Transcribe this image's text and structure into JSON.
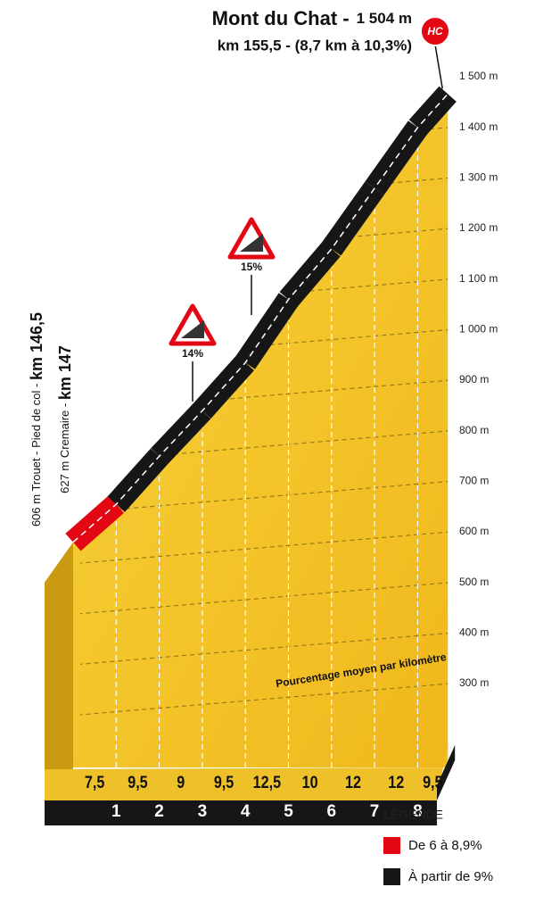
{
  "chart_data": {
    "type": "profile",
    "title": "Mont du Chat -",
    "summit_label": "1 504 m",
    "subtitle": "km 155,5 - (8,7 km à 10,3%)",
    "badge": "HC",
    "start_labels": [
      {
        "text": "606 m  Trouet - Pied de col - ",
        "km": "km 146,5"
      },
      {
        "text": "627 m Cremaire - ",
        "km": "km 147"
      }
    ],
    "start_altitude": 606,
    "xlim": [
      0,
      8.7
    ],
    "xticks": [
      1,
      2,
      3,
      4,
      5,
      6,
      7,
      8
    ],
    "ylim": [
      300,
      1500
    ],
    "yticks": [
      {
        "value": 300,
        "label": "300 m"
      },
      {
        "value": 400,
        "label": "400 m"
      },
      {
        "value": 500,
        "label": "500 m"
      },
      {
        "value": 600,
        "label": "600 m"
      },
      {
        "value": 700,
        "label": "700 m"
      },
      {
        "value": 800,
        "label": "800 m"
      },
      {
        "value": 900,
        "label": "900 m"
      },
      {
        "value": 1000,
        "label": "1 000 m"
      },
      {
        "value": 1100,
        "label": "1 100 m"
      },
      {
        "value": 1200,
        "label": "1 200 m"
      },
      {
        "value": 1300,
        "label": "1 300 m"
      },
      {
        "value": 1400,
        "label": "1 400 m"
      },
      {
        "value": 1500,
        "label": "1 500 m"
      }
    ],
    "grid": true,
    "values": [
      7.5,
      9.5,
      9,
      9.5,
      12.5,
      10,
      12,
      12,
      9.5
    ],
    "value_labels": [
      "7,5",
      "9,5",
      "9",
      "9,5",
      "12,5",
      "10",
      "12",
      "12",
      "9,5"
    ],
    "colors": [
      "#e30613",
      "#161616",
      "#161616",
      "#161616",
      "#161616",
      "#161616",
      "#161616",
      "#161616",
      "#161616"
    ],
    "axis_note": "Pourcentage moyen par kilomètre",
    "steep_signs": [
      "14%",
      "15%"
    ],
    "legend": {
      "title": "LÉGENDE",
      "items": [
        {
          "label": "De 6 à 8,9%",
          "color": "#e30613"
        },
        {
          "label": "À partir de 9%",
          "color": "#161616"
        }
      ]
    }
  }
}
